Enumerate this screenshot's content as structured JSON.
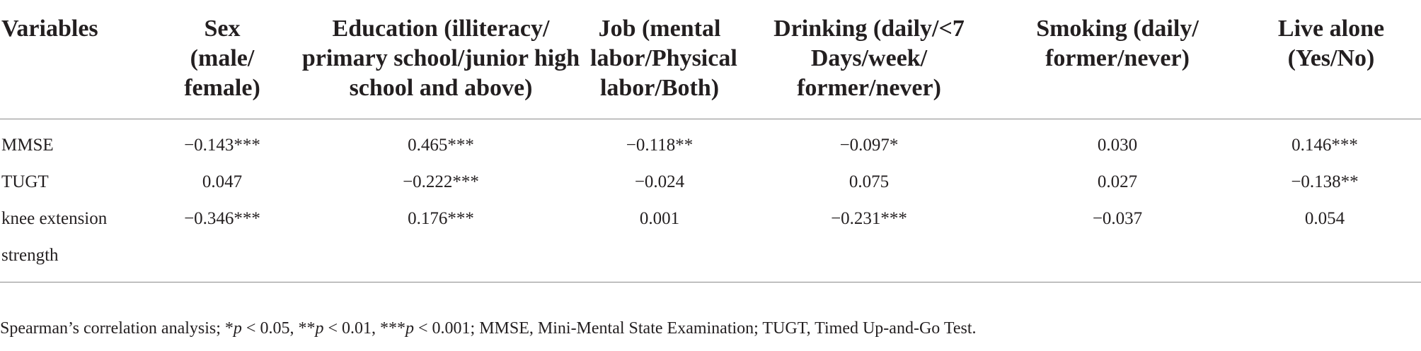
{
  "table": {
    "headers": [
      "Variables",
      "Sex (male/ female)",
      "Education (illiteracy/ primary school/junior high school and above)",
      "Job (mental labor/Physical labor/Both)",
      "Drinking (daily/<7 Days/week/ former/never)",
      "Smoking (daily/ former/never)",
      "Live alone (Yes/No)"
    ],
    "rows": [
      {
        "variable": "MMSE",
        "cells": [
          "−0.143***",
          "0.465***",
          "−0.118**",
          "−0.097*",
          "0.030",
          "0.146***"
        ]
      },
      {
        "variable": "TUGT",
        "cells": [
          "0.047",
          "−0.222***",
          "−0.024",
          "0.075",
          "0.027",
          "−0.138**"
        ]
      },
      {
        "variable": "knee extension strength",
        "cells": [
          "−0.346***",
          "0.176***",
          "0.001",
          "−0.231***",
          "−0.037",
          "0.054"
        ]
      }
    ]
  },
  "footnote": {
    "lead": "Spearman’s correlation analysis; *",
    "p1": "p",
    "t1": " < 0.05, **",
    "p2": "p",
    "t2": " < 0.01, ***",
    "p3": "p",
    "t3": " < 0.001; MMSE, Mini-Mental State Examination; TUGT, Timed Up-and-Go Test."
  }
}
